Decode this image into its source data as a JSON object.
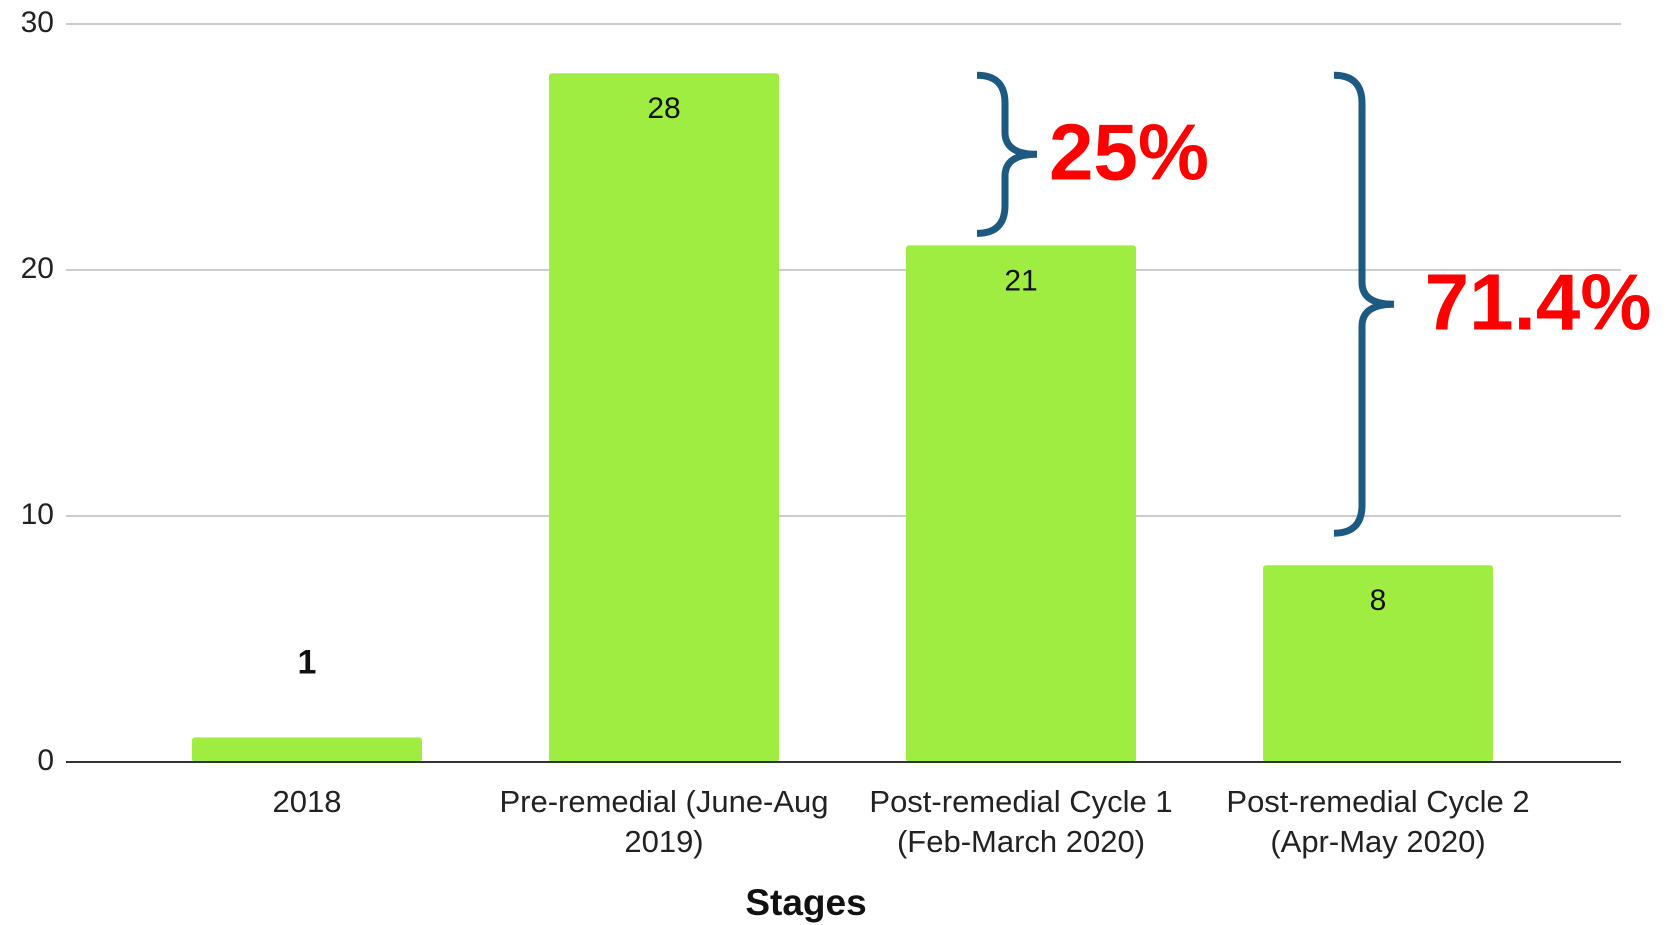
{
  "chart_data": {
    "type": "bar",
    "categories": [
      "2018",
      "Pre-remedial (June-Aug 2019)",
      "Post-remedial Cycle 1 (Feb-March 2020)",
      "Post-remedial Cycle 2 (Apr-May 2020)"
    ],
    "values": [
      1,
      28,
      21,
      8
    ],
    "color": "#a0ed42",
    "ylim": [
      0,
      30
    ],
    "yticks": [
      0,
      10,
      20,
      30
    ],
    "grid": true,
    "x_label": "Stages",
    "annotations": [
      "25%",
      "71.4%"
    ],
    "annotation_color": "#ff0000",
    "brace_color": "#1d5a82"
  }
}
